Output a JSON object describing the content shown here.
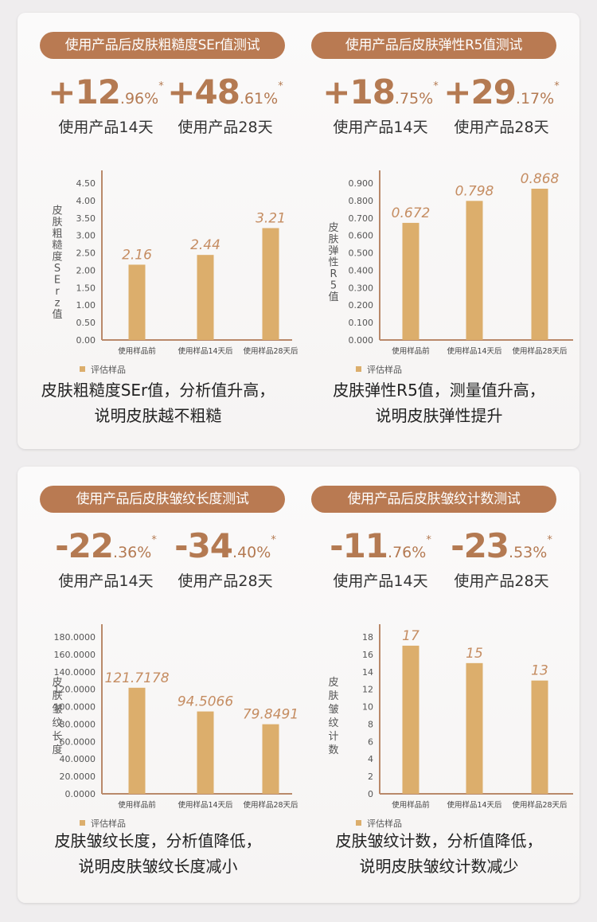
{
  "panels": [
    {
      "title": "使用产品后皮肤粗糙度SEr值测试",
      "stats": [
        {
          "big": "+12",
          "small": ".96%",
          "star": "*",
          "caption": "使用产品14天"
        },
        {
          "big": "+48",
          "small": ".61%",
          "star": "*",
          "caption": "使用产品28天"
        }
      ],
      "desc": [
        "皮肤粗糙度SEr值，分析值升高，",
        "说明皮肤越不粗糙"
      ]
    },
    {
      "title": "使用产品后皮肤弹性R5值测试",
      "stats": [
        {
          "big": "+18",
          "small": ".75%",
          "star": "*",
          "caption": "使用产品14天"
        },
        {
          "big": "+29",
          "small": ".17%",
          "star": "*",
          "caption": "使用产品28天"
        }
      ],
      "desc": [
        "皮肤弹性R5值，测量值升高，",
        "说明皮肤弹性提升"
      ]
    },
    {
      "title": "使用产品后皮肤皱纹长度测试",
      "stats": [
        {
          "big": "-22",
          "small": ".36%",
          "star": "*",
          "caption": "使用产品14天"
        },
        {
          "big": "-34",
          "small": ".40%",
          "star": "*",
          "caption": "使用产品28天"
        }
      ],
      "desc": [
        "皮肤皱纹长度，分析值降低，",
        "说明皮肤皱纹长度减小"
      ]
    },
    {
      "title": "使用产品后皮肤皱纹计数测试",
      "stats": [
        {
          "big": "-11",
          "small": ".76%",
          "star": "*",
          "caption": "使用产品14天"
        },
        {
          "big": "-23",
          "small": ".53%",
          "star": "*",
          "caption": "使用产品28天"
        }
      ],
      "desc": [
        "皮肤皱纹计数，分析值降低，",
        "说明皮肤皱纹计数减少"
      ]
    }
  ],
  "colors": {
    "bar": "#dcae6c",
    "axis": "#b9896a",
    "value_label": "#c58d62",
    "pill": "#b97a52"
  },
  "chart_data": [
    {
      "type": "bar",
      "categories": [
        "使用样品前",
        "使用样品14天后",
        "使用样品28天后"
      ],
      "values": [
        2.16,
        2.44,
        3.21
      ],
      "value_labels": [
        "2.16",
        "2.44",
        "3.21"
      ],
      "yticks": [
        "0.00",
        "0.50",
        "1.00",
        "1.50",
        "2.00",
        "2.50",
        "3.00",
        "3.50",
        "4.00",
        "4.50"
      ],
      "ylim": [
        0,
        4.5
      ],
      "ylabel": "皮肤粗糙度SErz值",
      "legend": "评估样品",
      "legend_position": "bottom-left"
    },
    {
      "type": "bar",
      "categories": [
        "使用样品前",
        "使用样品14天后",
        "使用样品28天后"
      ],
      "values": [
        0.672,
        0.798,
        0.868
      ],
      "value_labels": [
        "0.672",
        "0.798",
        "0.868"
      ],
      "yticks": [
        "0.000",
        "0.100",
        "0.200",
        "0.300",
        "0.400",
        "0.500",
        "0.600",
        "0.700",
        "0.800",
        "0.900"
      ],
      "ylim": [
        0,
        0.9
      ],
      "ylabel": "皮肤弹性R5值",
      "legend": "评估样品",
      "legend_position": "bottom-left"
    },
    {
      "type": "bar",
      "categories": [
        "使用样品前",
        "使用样品14天后",
        "使用样品28天后"
      ],
      "values": [
        121.7178,
        94.5066,
        79.8491
      ],
      "value_labels": [
        "121.7178",
        "94.5066",
        "79.8491"
      ],
      "yticks": [
        "0.0000",
        "20.0000",
        "40.0000",
        "60.0000",
        "80.0000",
        "100.0000",
        "120.0000",
        "140.0000",
        "160.0000",
        "180.0000"
      ],
      "ylim": [
        0,
        180
      ],
      "ylabel": "皮肤皱纹长度",
      "legend": "评估样品",
      "legend_position": "bottom-left"
    },
    {
      "type": "bar",
      "categories": [
        "使用样品前",
        "使用样品14天后",
        "使用样品28天后"
      ],
      "values": [
        17,
        15,
        13
      ],
      "value_labels": [
        "17",
        "15",
        "13"
      ],
      "yticks": [
        "0",
        "2",
        "4",
        "6",
        "8",
        "10",
        "12",
        "14",
        "16",
        "18"
      ],
      "ylim": [
        0,
        18
      ],
      "ylabel": "皮肤皱纹计数",
      "legend": "评估样品",
      "legend_position": "bottom-left"
    }
  ]
}
